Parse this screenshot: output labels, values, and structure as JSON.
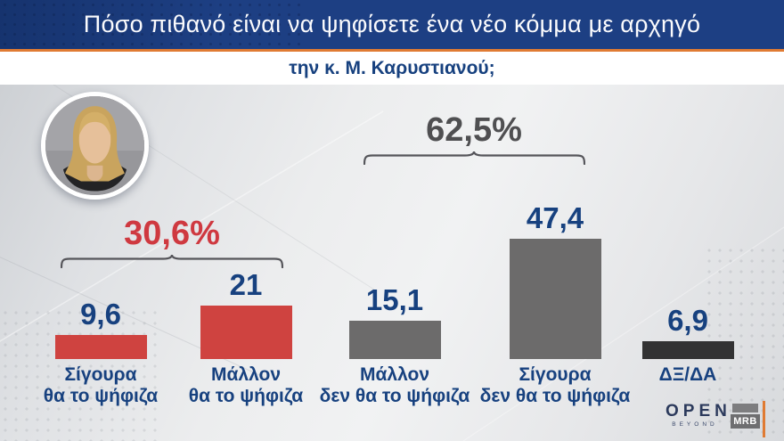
{
  "header": {
    "title": "Πόσο πιθανό είναι να ψηφίσετε ένα νέο κόμμα με αρχηγό",
    "subtitle": "την κ. Μ. Καρυστιανού;"
  },
  "colors": {
    "header-bg": "#1d3f83",
    "accent": "#e07b33",
    "navy": "#17417f",
    "red": "#cf4340",
    "red-label": "#cf3940",
    "gray-bar": "#6c6b6b",
    "dark-bar": "#323233",
    "gray-label": "#4f4f51",
    "brace": "#55555a"
  },
  "photo": {
    "alt_name": "portrait-m-karystianou"
  },
  "chart_data": {
    "type": "bar",
    "categories": [
      "Σίγουρα\nθα το ψήφιζα",
      "Μάλλον\nθα το ψήφιζα",
      "Μάλλον\nδεν θα το ψήφιζα",
      "Σίγουρα\nδεν θα το ψήφιζα",
      "ΔΞ/ΔΑ"
    ],
    "values": [
      9.6,
      21,
      15.1,
      47.4,
      6.9
    ],
    "value_labels": [
      "9,6",
      "21",
      "15,1",
      "47,4",
      "6,9"
    ],
    "bar_colors": [
      "#cf4340",
      "#cf4340",
      "#6c6b6b",
      "#6c6b6b",
      "#323233"
    ],
    "ylim": [
      0,
      50
    ],
    "grid": false,
    "legend": "none",
    "groups": [
      {
        "label": "30,6%",
        "bars": [
          0,
          1
        ],
        "label_color": "#cf3940"
      },
      {
        "label": "62,5%",
        "bars": [
          2,
          3
        ],
        "label_color": "#4f4f51"
      }
    ]
  },
  "branding": {
    "open_label": "OPEN",
    "open_sub": "BEYOND",
    "mrb_label": "MRB"
  }
}
